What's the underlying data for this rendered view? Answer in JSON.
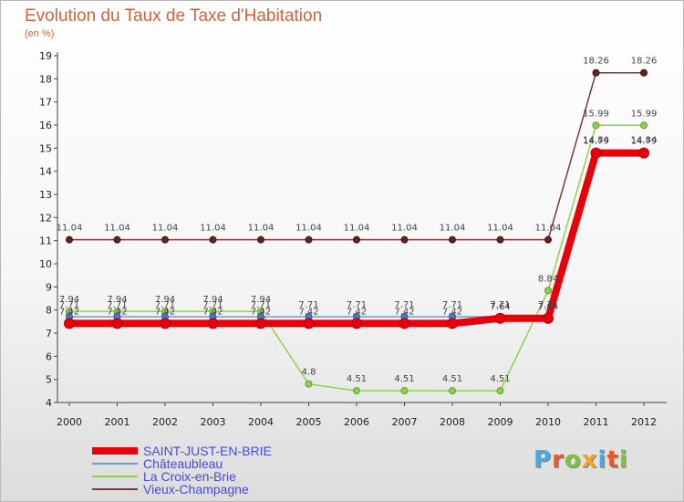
{
  "title": "Evolution du Taux de Taxe d'Habitation",
  "unit_label": "(en %)",
  "logo": {
    "text": "Proxiti",
    "letters": [
      "P",
      "r",
      "o",
      "x",
      "i",
      "t",
      "i"
    ],
    "colors": [
      "#4aa8e0",
      "#e85a2a",
      "#7cc241",
      "#f2a21d",
      "#4aa8e0",
      "#e85a2a",
      "#7cc241"
    ]
  },
  "chart_data": {
    "type": "line",
    "title": "Evolution du Taux de Taxe d'Habitation",
    "ylabel": "(en %)",
    "xlabel": "",
    "ylim": [
      4,
      19
    ],
    "yticks": [
      4,
      5,
      6,
      7,
      8,
      9,
      10,
      11,
      12,
      13,
      14,
      15,
      16,
      17,
      18,
      19
    ],
    "x": [
      "2000",
      "2001",
      "2002",
      "2003",
      "2004",
      "2005",
      "2006",
      "2007",
      "2008",
      "2009",
      "2010",
      "2011",
      "2012"
    ],
    "grid": false,
    "legend_position": "bottom-left",
    "series": [
      {
        "name": "SAINT-JUST-EN-BRIE",
        "color": "#e8000b",
        "values": [
          7.42,
          7.42,
          7.42,
          7.42,
          7.42,
          7.42,
          7.42,
          7.42,
          7.42,
          7.64,
          7.64,
          14.79,
          14.79
        ],
        "labels": [
          "7.42",
          "7.42",
          "7.42",
          "7.42",
          "7.42",
          "7.42",
          "7.42",
          "7.42",
          "7.42",
          "7.64",
          "7.64",
          "14.79",
          "14.79"
        ]
      },
      {
        "name": "Châteaubleau",
        "color": "#6f9fc8",
        "values": [
          7.71,
          7.71,
          7.71,
          7.71,
          7.71,
          7.71,
          7.71,
          7.71,
          7.71,
          7.71,
          7.71,
          14.84,
          14.84
        ],
        "labels": [
          "7.71",
          "7.71",
          "7.71",
          "7.71",
          "7.71",
          "7.71",
          "7.71",
          "7.71",
          "7.71",
          "7.71",
          "7.71",
          "14.84",
          "14.84"
        ]
      },
      {
        "name": "La Croix-en-Brie",
        "color": "#8fd14f",
        "values": [
          7.94,
          7.94,
          7.94,
          7.94,
          7.94,
          4.8,
          4.51,
          4.51,
          4.51,
          4.51,
          8.84,
          15.99,
          15.99
        ],
        "labels": [
          "7.94",
          "7.94",
          "7.94",
          "7.94",
          "7.94",
          "4.8",
          "4.51",
          "4.51",
          "4.51",
          "4.51",
          "8.84",
          "15.99",
          "15.99"
        ]
      },
      {
        "name": "Vieux-Champagne",
        "color": "#7a3a3a",
        "values": [
          11.04,
          11.04,
          11.04,
          11.04,
          11.04,
          11.04,
          11.04,
          11.04,
          11.04,
          11.04,
          11.04,
          18.26,
          18.26
        ],
        "labels": [
          "11.04",
          "11.04",
          "11.04",
          "11.04",
          "11.04",
          "11.04",
          "11.04",
          "11.04",
          "11.04",
          "11.04",
          "11.04",
          "18.26",
          "18.26"
        ]
      }
    ]
  }
}
